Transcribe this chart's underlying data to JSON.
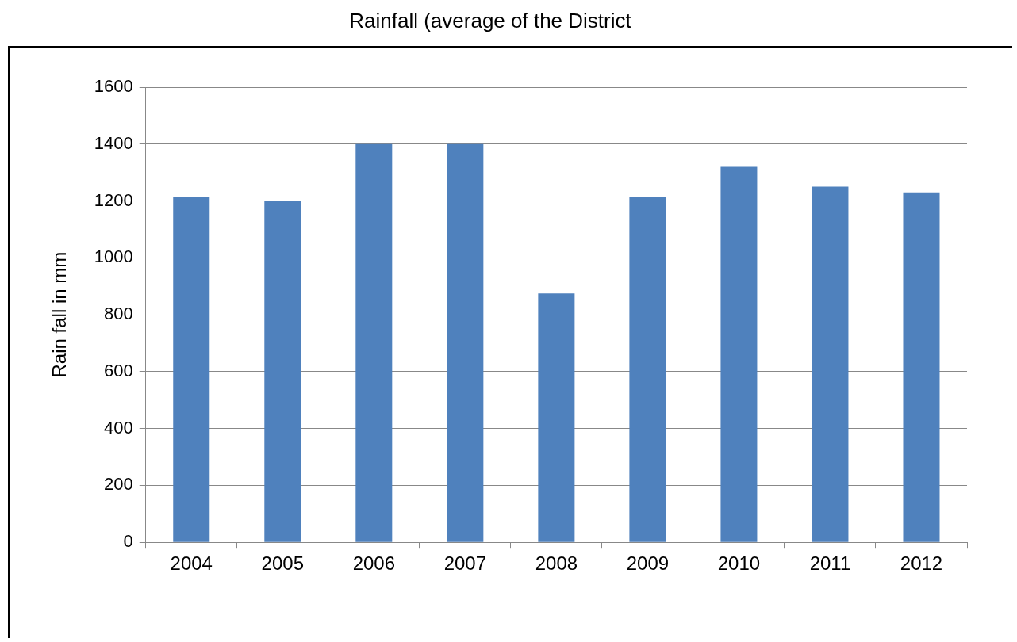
{
  "chart_data": {
    "type": "bar",
    "title": "Rainfall (average of the District",
    "ylabel": "Rain fall in mm",
    "categories": [
      "2004",
      "2005",
      "2006",
      "2007",
      "2008",
      "2009",
      "2010",
      "2011",
      "2012"
    ],
    "values": [
      1215,
      1200,
      1400,
      1400,
      875,
      1215,
      1320,
      1250,
      1230
    ],
    "color": "#4f81bd",
    "ylim": [
      0,
      1600
    ],
    "yticks": [
      0,
      200,
      400,
      600,
      800,
      1000,
      1200,
      1400,
      1600
    ],
    "grid": "y"
  }
}
